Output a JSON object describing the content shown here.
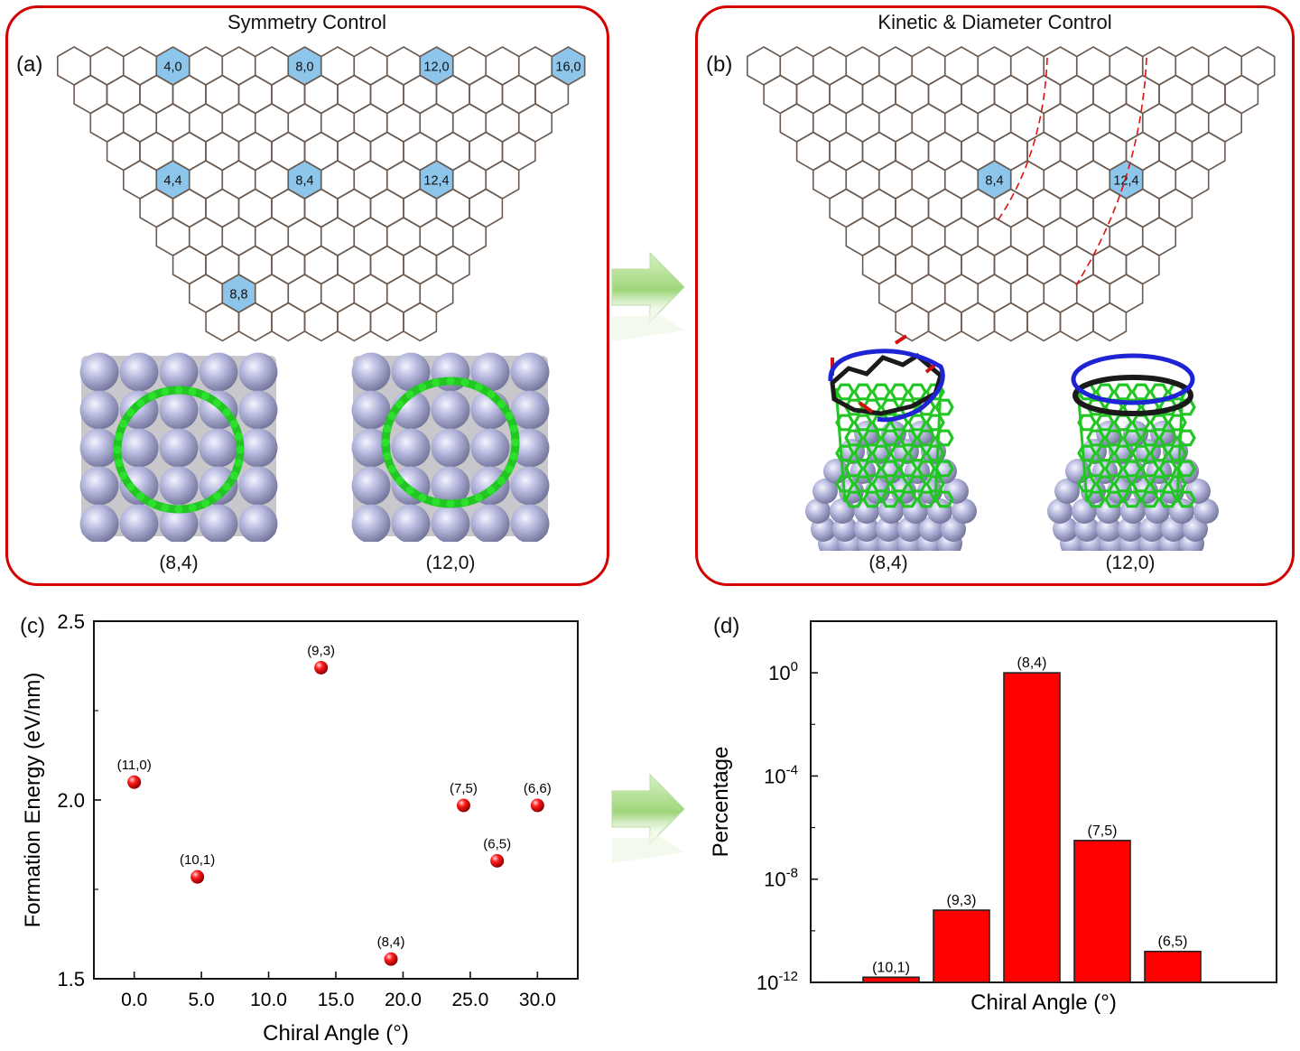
{
  "panel_a": {
    "title": "Symmetry Control",
    "letter": "(a)",
    "highlights": [
      {
        "label": "4,0",
        "row": 0,
        "col": 3
      },
      {
        "label": "8,0",
        "row": 0,
        "col": 7
      },
      {
        "label": "12,0",
        "row": 0,
        "col": 11
      },
      {
        "label": "16,0",
        "row": 0,
        "col": 15
      },
      {
        "label": "4,4",
        "row": 4,
        "col": 5
      },
      {
        "label": "8,4",
        "row": 4,
        "col": 9
      },
      {
        "label": "12,4",
        "row": 4,
        "col": 13
      },
      {
        "label": "8,8",
        "row": 8,
        "col": 9
      }
    ],
    "structures": [
      "(8,4)",
      "(12,0)"
    ]
  },
  "panel_b": {
    "title": "Kinetic & Diameter Control",
    "letter": "(b)",
    "highlights": [
      {
        "label": "8,4",
        "row": 4,
        "col": 9
      },
      {
        "label": "12,4",
        "row": 4,
        "col": 13
      }
    ],
    "structures": [
      "(8,4)",
      "(12,0)"
    ]
  },
  "colors": {
    "frame": "#d40000",
    "hex_line": "#6b5a50",
    "hex_highlight": "#8ec5ea",
    "nanotube": "#22c622",
    "metal_atom": "#b4b6dc",
    "marker": "#e60000",
    "arrow": "#9ed67a"
  },
  "chart_c": {
    "letter": "(c)",
    "chart_data": {
      "type": "scatter",
      "title": "",
      "xlabel": "Chiral Angle (°)",
      "ylabel": "Formation Energy (eV/nm)",
      "xlim": [
        -3,
        33
      ],
      "ylim": [
        1.5,
        2.5
      ],
      "xticks": [
        0,
        5,
        10,
        15,
        20,
        25,
        30
      ],
      "xtick_labels": [
        "0.0",
        "5.0",
        "10.0",
        "15.0",
        "20.0",
        "25.0",
        "30.0"
      ],
      "yticks": [
        1.5,
        2.0,
        2.5
      ],
      "ytick_labels": [
        "1.5",
        "2.0",
        "2.5"
      ],
      "points": [
        {
          "label": "(11,0)",
          "x": 0.0,
          "y": 2.05
        },
        {
          "label": "(10,1)",
          "x": 4.7,
          "y": 1.785
        },
        {
          "label": "(9,3)",
          "x": 13.9,
          "y": 2.37
        },
        {
          "label": "(8,4)",
          "x": 19.1,
          "y": 1.555
        },
        {
          "label": "(7,5)",
          "x": 24.5,
          "y": 1.985
        },
        {
          "label": "(6,5)",
          "x": 27.0,
          "y": 1.83
        },
        {
          "label": "(6,6)",
          "x": 30.0,
          "y": 1.985
        }
      ]
    }
  },
  "chart_d": {
    "letter": "(d)",
    "chart_data": {
      "type": "bar",
      "title": "",
      "xlabel": "Chiral Angle (°)",
      "ylabel": "Percentage",
      "yscale": "log",
      "ylim_exp": [
        -12,
        2
      ],
      "ytick_exps": [
        -12,
        -8,
        -4,
        0
      ],
      "ytick_base": "10",
      "categories": [
        "(10,1)",
        "(9,3)",
        "(8,4)",
        "(7,5)",
        "(6,5)"
      ],
      "values_exp": [
        -11.8,
        -9.2,
        0,
        -6.5,
        -10.8
      ]
    }
  }
}
